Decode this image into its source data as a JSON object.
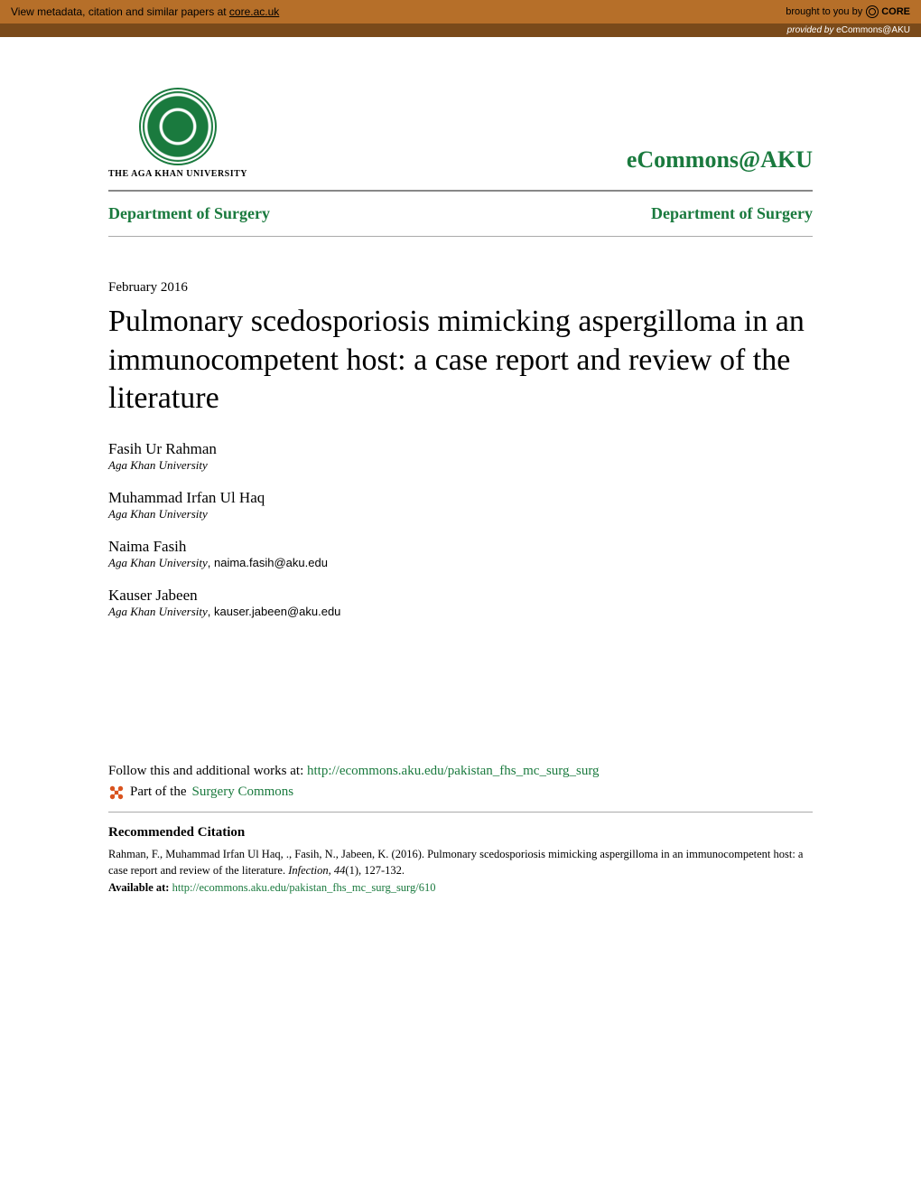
{
  "banner": {
    "left_text": "View metadata, citation and similar papers at ",
    "core_link": "core.ac.uk",
    "brought_by": "brought to you by",
    "core_label": "CORE",
    "provided_by_prefix": "provided by ",
    "provided_by_source": "eCommons@AKU"
  },
  "header": {
    "university_name": "THE AGA KHAN UNIVERSITY",
    "repo_name": "eCommons@AKU",
    "dept_left": "Department of Surgery",
    "dept_right": "Department of Surgery"
  },
  "article": {
    "date": "February 2016",
    "title": "Pulmonary scedosporiosis mimicking aspergilloma in an immunocompetent host: a case report and review of the literature"
  },
  "authors": [
    {
      "name": "Fasih Ur Rahman",
      "affiliation": "Aga Khan University",
      "email": ""
    },
    {
      "name": "Muhammad Irfan Ul Haq",
      "affiliation": "Aga Khan University",
      "email": ""
    },
    {
      "name": "Naima Fasih",
      "affiliation": "Aga Khan University",
      "email": "naima.fasih@aku.edu"
    },
    {
      "name": "Kauser Jabeen",
      "affiliation": "Aga Khan University",
      "email": "kauser.jabeen@aku.edu"
    }
  ],
  "follow": {
    "prefix": "Follow this and additional works at: ",
    "url": "http://ecommons.aku.edu/pakistan_fhs_mc_surg_surg",
    "part_of_prefix": "Part of the ",
    "commons_link": "Surgery Commons"
  },
  "citation": {
    "heading": "Recommended Citation",
    "text_part1": "Rahman, F., Muhammad Irfan Ul Haq, ., Fasih, N., Jabeen, K. (2016). Pulmonary scedosporiosis mimicking aspergilloma in an immunocompetent host: a case report and review of the literature. ",
    "journal": "Infection, 44",
    "text_part2": "(1), 127-132.",
    "available_label": "Available at: ",
    "available_url": "http://ecommons.aku.edu/pakistan_fhs_mc_surg_surg/610"
  },
  "colors": {
    "banner_bg": "#b66f29",
    "provided_bg": "#7a4a1a",
    "accent_green": "#1a7a3e",
    "network_icon": "#d9531e"
  }
}
